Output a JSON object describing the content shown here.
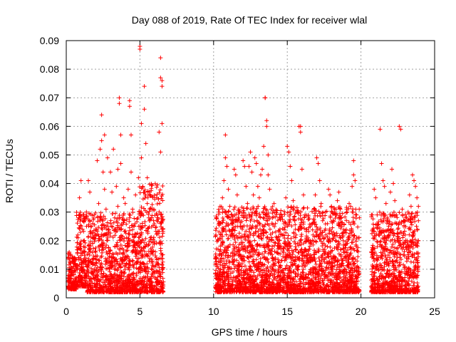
{
  "chart_data": {
    "type": "scatter",
    "title": "Day 088 of 2019, Rate Of TEC Index for receiver wlal",
    "xlabel": "GPS time / hours",
    "ylabel": "ROTI / TECUs",
    "xlim": [
      0,
      25
    ],
    "ylim": [
      0,
      0.09
    ],
    "xticks": [
      0,
      5,
      10,
      15,
      20,
      25
    ],
    "xtick_labels": [
      "0",
      "5",
      "10",
      "15",
      "20",
      "25"
    ],
    "yticks": [
      0,
      0.01,
      0.02,
      0.03,
      0.04,
      0.05,
      0.06,
      0.07,
      0.08,
      0.09
    ],
    "ytick_labels": [
      "0",
      "0.01",
      "0.02",
      "0.03",
      "0.04",
      "0.05",
      "0.06",
      "0.07",
      "0.08",
      "0.09"
    ],
    "grid": true,
    "marker": "+",
    "color": "#ff0000",
    "series": [
      {
        "name": "ROTI",
        "points": [
          [
            0.2,
            0.016
          ],
          [
            0.3,
            0.012
          ],
          [
            0.3,
            0.008
          ],
          [
            0.4,
            0.004
          ],
          [
            0.4,
            0.014
          ],
          [
            0.5,
            0.011
          ],
          [
            0.5,
            0.006
          ],
          [
            0.6,
            0.009
          ],
          [
            0.6,
            0.013
          ],
          [
            0.7,
            0.007
          ],
          [
            0.8,
            0.021
          ],
          [
            0.9,
            0.028
          ],
          [
            0.9,
            0.035
          ],
          [
            1.0,
            0.041
          ],
          [
            1.0,
            0.018
          ],
          [
            1.1,
            0.009
          ],
          [
            1.1,
            0.024
          ],
          [
            1.2,
            0.013
          ],
          [
            1.3,
            0.006
          ],
          [
            1.4,
            0.011
          ],
          [
            1.5,
            0.041
          ],
          [
            1.6,
            0.037
          ],
          [
            1.6,
            0.017
          ],
          [
            1.7,
            0.025
          ],
          [
            1.8,
            0.012
          ],
          [
            1.9,
            0.029
          ],
          [
            2.0,
            0.016
          ],
          [
            2.0,
            0.008
          ],
          [
            2.1,
            0.048
          ],
          [
            2.2,
            0.033
          ],
          [
            2.3,
            0.052
          ],
          [
            2.3,
            0.027
          ],
          [
            2.4,
            0.064
          ],
          [
            2.4,
            0.055
          ],
          [
            2.5,
            0.044
          ],
          [
            2.5,
            0.019
          ],
          [
            2.6,
            0.057
          ],
          [
            2.6,
            0.038
          ],
          [
            2.7,
            0.031
          ],
          [
            2.8,
            0.049
          ],
          [
            2.8,
            0.021
          ],
          [
            2.9,
            0.014
          ],
          [
            3.0,
            0.044
          ],
          [
            3.0,
            0.026
          ],
          [
            3.1,
            0.037
          ],
          [
            3.2,
            0.052
          ],
          [
            3.3,
            0.018
          ],
          [
            3.4,
            0.039
          ],
          [
            3.5,
            0.045
          ],
          [
            3.5,
            0.032
          ],
          [
            3.6,
            0.07
          ],
          [
            3.6,
            0.068
          ],
          [
            3.7,
            0.057
          ],
          [
            3.7,
            0.047
          ],
          [
            3.8,
            0.028
          ],
          [
            3.9,
            0.035
          ],
          [
            4.0,
            0.033
          ],
          [
            4.1,
            0.021
          ],
          [
            4.2,
            0.038
          ],
          [
            4.3,
            0.069
          ],
          [
            4.3,
            0.067
          ],
          [
            4.4,
            0.057
          ],
          [
            4.4,
            0.044
          ],
          [
            4.5,
            0.031
          ],
          [
            4.6,
            0.025
          ],
          [
            4.7,
            0.036
          ],
          [
            4.8,
            0.019
          ],
          [
            4.9,
            0.042
          ],
          [
            5.0,
            0.087
          ],
          [
            5.0,
            0.088
          ],
          [
            5.1,
            0.061
          ],
          [
            5.1,
            0.049
          ],
          [
            5.2,
            0.039
          ],
          [
            5.3,
            0.074
          ],
          [
            5.3,
            0.066
          ],
          [
            5.4,
            0.054
          ],
          [
            5.5,
            0.042
          ],
          [
            5.5,
            0.033
          ],
          [
            5.6,
            0.028
          ],
          [
            5.7,
            0.021
          ],
          [
            5.8,
            0.016
          ],
          [
            5.9,
            0.011
          ],
          [
            6.0,
            0.009
          ],
          [
            6.1,
            0.014
          ],
          [
            6.2,
            0.012
          ],
          [
            6.3,
            0.058
          ],
          [
            6.4,
            0.084
          ],
          [
            6.4,
            0.077
          ],
          [
            6.5,
            0.076
          ],
          [
            6.5,
            0.074
          ],
          [
            6.5,
            0.061
          ],
          [
            6.4,
            0.051
          ],
          [
            6.5,
            0.019
          ],
          [
            6.5,
            0.015
          ],
          [
            10.2,
            0.012
          ],
          [
            10.3,
            0.017
          ],
          [
            10.4,
            0.026
          ],
          [
            10.5,
            0.022
          ],
          [
            10.6,
            0.035
          ],
          [
            10.7,
            0.041
          ],
          [
            10.8,
            0.057
          ],
          [
            10.8,
            0.049
          ],
          [
            10.9,
            0.046
          ],
          [
            11.0,
            0.038
          ],
          [
            11.1,
            0.032
          ],
          [
            11.2,
            0.029
          ],
          [
            11.3,
            0.024
          ],
          [
            11.4,
            0.045
          ],
          [
            11.5,
            0.043
          ],
          [
            11.6,
            0.036
          ],
          [
            11.7,
            0.031
          ],
          [
            11.8,
            0.025
          ],
          [
            11.9,
            0.021
          ],
          [
            12.0,
            0.048
          ],
          [
            12.1,
            0.046
          ],
          [
            12.2,
            0.039
          ],
          [
            12.3,
            0.033
          ],
          [
            12.4,
            0.046
          ],
          [
            12.5,
            0.051
          ],
          [
            12.6,
            0.044
          ],
          [
            12.7,
            0.036
          ],
          [
            12.8,
            0.049
          ],
          [
            12.9,
            0.047
          ],
          [
            13.0,
            0.039
          ],
          [
            13.1,
            0.035
          ],
          [
            13.2,
            0.043
          ],
          [
            13.3,
            0.045
          ],
          [
            13.4,
            0.053
          ],
          [
            13.5,
            0.07
          ],
          [
            13.5,
            0.07
          ],
          [
            13.6,
            0.062
          ],
          [
            13.6,
            0.06
          ],
          [
            13.7,
            0.05
          ],
          [
            13.7,
            0.043
          ],
          [
            13.8,
            0.038
          ],
          [
            13.9,
            0.031
          ],
          [
            14.0,
            0.028
          ],
          [
            14.1,
            0.033
          ],
          [
            14.2,
            0.026
          ],
          [
            14.3,
            0.021
          ],
          [
            14.4,
            0.018
          ],
          [
            14.5,
            0.024
          ],
          [
            14.6,
            0.029
          ],
          [
            14.7,
            0.022
          ],
          [
            14.8,
            0.019
          ],
          [
            14.9,
            0.035
          ],
          [
            15.0,
            0.053
          ],
          [
            15.1,
            0.051
          ],
          [
            15.2,
            0.046
          ],
          [
            15.3,
            0.041
          ],
          [
            15.4,
            0.034
          ],
          [
            15.5,
            0.027
          ],
          [
            15.6,
            0.022
          ],
          [
            15.7,
            0.019
          ],
          [
            15.8,
            0.06
          ],
          [
            15.9,
            0.06
          ],
          [
            15.9,
            0.058
          ],
          [
            16.0,
            0.045
          ],
          [
            16.1,
            0.036
          ],
          [
            16.2,
            0.029
          ],
          [
            16.3,
            0.024
          ],
          [
            16.4,
            0.021
          ],
          [
            16.5,
            0.017
          ],
          [
            16.6,
            0.013
          ],
          [
            16.7,
            0.026
          ],
          [
            16.8,
            0.031
          ],
          [
            16.9,
            0.036
          ],
          [
            17.0,
            0.049
          ],
          [
            17.1,
            0.047
          ],
          [
            17.2,
            0.041
          ],
          [
            17.3,
            0.033
          ],
          [
            17.4,
            0.027
          ],
          [
            17.5,
            0.021
          ],
          [
            17.6,
            0.016
          ],
          [
            17.7,
            0.012
          ],
          [
            17.8,
            0.038
          ],
          [
            17.9,
            0.036
          ],
          [
            18.0,
            0.032
          ],
          [
            18.1,
            0.027
          ],
          [
            18.2,
            0.022
          ],
          [
            18.3,
            0.029
          ],
          [
            18.4,
            0.034
          ],
          [
            18.5,
            0.037
          ],
          [
            18.6,
            0.031
          ],
          [
            18.7,
            0.025
          ],
          [
            18.8,
            0.02
          ],
          [
            18.9,
            0.016
          ],
          [
            19.0,
            0.013
          ],
          [
            19.1,
            0.011
          ],
          [
            19.2,
            0.033
          ],
          [
            19.3,
            0.032
          ],
          [
            19.4,
            0.039
          ],
          [
            19.5,
            0.048
          ],
          [
            19.5,
            0.043
          ],
          [
            19.6,
            0.041
          ],
          [
            19.7,
            0.029
          ],
          [
            19.8,
            0.021
          ],
          [
            20.8,
            0.017
          ],
          [
            20.9,
            0.038
          ],
          [
            21.0,
            0.035
          ],
          [
            21.1,
            0.029
          ],
          [
            21.2,
            0.022
          ],
          [
            21.3,
            0.059
          ],
          [
            21.4,
            0.047
          ],
          [
            21.5,
            0.041
          ],
          [
            21.6,
            0.039
          ],
          [
            21.7,
            0.033
          ],
          [
            21.8,
            0.028
          ],
          [
            21.9,
            0.022
          ],
          [
            22.0,
            0.037
          ],
          [
            22.1,
            0.045
          ],
          [
            22.2,
            0.04
          ],
          [
            22.3,
            0.034
          ],
          [
            22.4,
            0.029
          ],
          [
            22.5,
            0.024
          ],
          [
            22.6,
            0.06
          ],
          [
            22.7,
            0.059
          ],
          [
            22.8,
            0.031
          ],
          [
            22.9,
            0.027
          ],
          [
            23.0,
            0.022
          ],
          [
            23.1,
            0.018
          ],
          [
            23.2,
            0.03
          ],
          [
            23.3,
            0.036
          ],
          [
            23.4,
            0.032
          ],
          [
            23.5,
            0.043
          ],
          [
            23.6,
            0.041
          ],
          [
            23.7,
            0.039
          ],
          [
            23.8,
            0.035
          ],
          [
            23.9,
            0.032
          ],
          [
            23.9,
            0.027
          ]
        ]
      }
    ],
    "dense_bands": [
      {
        "x_range": [
          0.1,
          0.7
        ],
        "y_range": [
          0.003,
          0.016
        ]
      },
      {
        "x_range": [
          0.7,
          1.4
        ],
        "y_range": [
          0.004,
          0.03
        ]
      },
      {
        "x_range": [
          1.4,
          4.9
        ],
        "y_range": [
          0.002,
          0.03
        ]
      },
      {
        "x_range": [
          4.9,
          6.6
        ],
        "y_range": [
          0.002,
          0.04
        ]
      },
      {
        "x_range": [
          10.1,
          19.9
        ],
        "y_range": [
          0.002,
          0.032
        ]
      },
      {
        "x_range": [
          20.7,
          23.9
        ],
        "y_range": [
          0.002,
          0.03
        ]
      }
    ]
  }
}
